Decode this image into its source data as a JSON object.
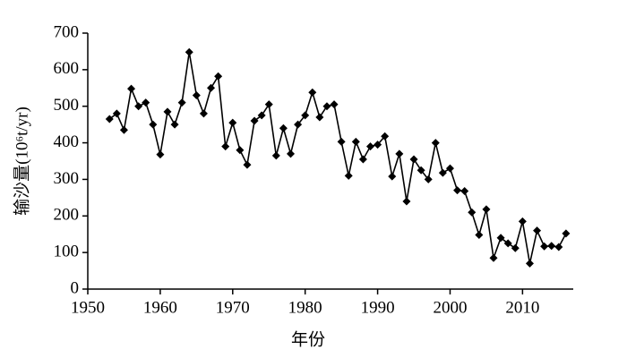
{
  "chart_data": {
    "type": "line",
    "x_label": "年份",
    "y_label": "输沙量(10⁶t/yr)",
    "x": [
      1953,
      1954,
      1955,
      1956,
      1957,
      1958,
      1959,
      1960,
      1961,
      1962,
      1963,
      1964,
      1965,
      1966,
      1967,
      1968,
      1969,
      1970,
      1971,
      1972,
      1973,
      1974,
      1975,
      1976,
      1977,
      1978,
      1979,
      1980,
      1981,
      1982,
      1983,
      1984,
      1985,
      1986,
      1987,
      1988,
      1989,
      1990,
      1991,
      1992,
      1993,
      1994,
      1995,
      1996,
      1997,
      1998,
      1999,
      2000,
      2001,
      2002,
      2003,
      2004,
      2005,
      2006,
      2007,
      2008,
      2009,
      2010,
      2011,
      2012,
      2013,
      2014,
      2015,
      2016
    ],
    "values": [
      465,
      480,
      435,
      548,
      500,
      510,
      450,
      368,
      485,
      450,
      510,
      648,
      530,
      480,
      550,
      582,
      390,
      455,
      380,
      340,
      460,
      475,
      505,
      365,
      440,
      370,
      450,
      475,
      538,
      470,
      500,
      505,
      403,
      310,
      403,
      355,
      390,
      395,
      418,
      308,
      370,
      240,
      355,
      325,
      300,
      400,
      318,
      330,
      270,
      268,
      210,
      148,
      218,
      85,
      140,
      125,
      112,
      185,
      70,
      160,
      117,
      118,
      115,
      152
    ],
    "color": "#000000",
    "xlim": [
      1950,
      2017
    ],
    "xticks": [
      1950,
      1960,
      1970,
      1980,
      1990,
      2000,
      2010
    ],
    "ylim": [
      0,
      700
    ],
    "yticks": [
      0,
      100,
      200,
      300,
      400,
      500,
      600,
      700
    ]
  }
}
